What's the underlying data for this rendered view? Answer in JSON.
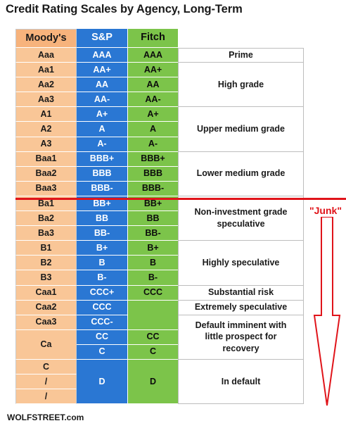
{
  "title": "Credit Rating Scales by Agency, Long-Term",
  "footer": "WOLFSTREET.com",
  "junk_label": "\"Junk\"",
  "colors": {
    "moodys": "#f9c697",
    "moodys_header": "#f7b37c",
    "sp": "#2a77d3",
    "fitch": "#7cc44a",
    "junk_line": "#e0141a"
  },
  "chart_data": {
    "type": "table",
    "columns": [
      "Moody's",
      "S&P",
      "Fitch"
    ],
    "rows": [
      {
        "moodys": "Aaa",
        "sp": "AAA",
        "fitch": "AAA"
      },
      {
        "moodys": "Aa1",
        "sp": "AA+",
        "fitch": "AA+"
      },
      {
        "moodys": "Aa2",
        "sp": "AA",
        "fitch": "AA"
      },
      {
        "moodys": "Aa3",
        "sp": "AA-",
        "fitch": "AA-"
      },
      {
        "moodys": "A1",
        "sp": "A+",
        "fitch": "A+"
      },
      {
        "moodys": "A2",
        "sp": "A",
        "fitch": "A"
      },
      {
        "moodys": "A3",
        "sp": "A-",
        "fitch": "A-"
      },
      {
        "moodys": "Baa1",
        "sp": "BBB+",
        "fitch": "BBB+"
      },
      {
        "moodys": "Baa2",
        "sp": "BBB",
        "fitch": "BBB"
      },
      {
        "moodys": "Baa3",
        "sp": "BBB-",
        "fitch": "BBB-"
      },
      {
        "moodys": "Ba1",
        "sp": "BB+",
        "fitch": "BB+"
      },
      {
        "moodys": "Ba2",
        "sp": "BB",
        "fitch": "BB"
      },
      {
        "moodys": "Ba3",
        "sp": "BB-",
        "fitch": "BB-"
      },
      {
        "moodys": "B1",
        "sp": "B+",
        "fitch": "B+"
      },
      {
        "moodys": "B2",
        "sp": "B",
        "fitch": "B"
      },
      {
        "moodys": "B3",
        "sp": "B-",
        "fitch": "B-"
      },
      {
        "moodys": "Caa1",
        "sp": "CCC+",
        "fitch": "CCC"
      },
      {
        "moodys": "Caa2",
        "sp": "CCC",
        "fitch": ""
      },
      {
        "moodys": "Caa3",
        "sp": "CCC-",
        "fitch": ""
      },
      {
        "moodys": "Ca",
        "sp": "CC",
        "fitch": "CC"
      },
      {
        "moodys": "",
        "sp": "C",
        "fitch": "C"
      },
      {
        "moodys": "C",
        "sp": "D",
        "fitch": "D"
      },
      {
        "moodys": "/",
        "sp": "",
        "fitch": ""
      },
      {
        "moodys": "/",
        "sp": "",
        "fitch": ""
      }
    ],
    "categories": [
      {
        "label": "Prime",
        "first_row": 0,
        "row_count": 1
      },
      {
        "label": "High grade",
        "first_row": 1,
        "row_count": 3
      },
      {
        "label": "Upper medium grade",
        "first_row": 4,
        "row_count": 3
      },
      {
        "label": "Lower medium grade",
        "first_row": 7,
        "row_count": 3
      },
      {
        "label": "Non-investment grade speculative",
        "first_row": 10,
        "row_count": 3
      },
      {
        "label": "Highly speculative",
        "first_row": 13,
        "row_count": 3
      },
      {
        "label": "Substantial risk",
        "first_row": 16,
        "row_count": 1
      },
      {
        "label": "Extremely speculative",
        "first_row": 17,
        "row_count": 1
      },
      {
        "label": "Default imminent with little prospect for recovery",
        "first_row": 18,
        "row_count": 3
      },
      {
        "label": "In default",
        "first_row": 21,
        "row_count": 3
      }
    ],
    "merged": [
      {
        "column": "moodys",
        "first_row": 19,
        "row_count": 2
      },
      {
        "column": "sp",
        "first_row": 21,
        "row_count": 3
      },
      {
        "column": "fitch",
        "first_row": 17,
        "row_count": 2
      },
      {
        "column": "fitch",
        "first_row": 21,
        "row_count": 3
      }
    ],
    "junk_threshold_after_row": 9
  }
}
